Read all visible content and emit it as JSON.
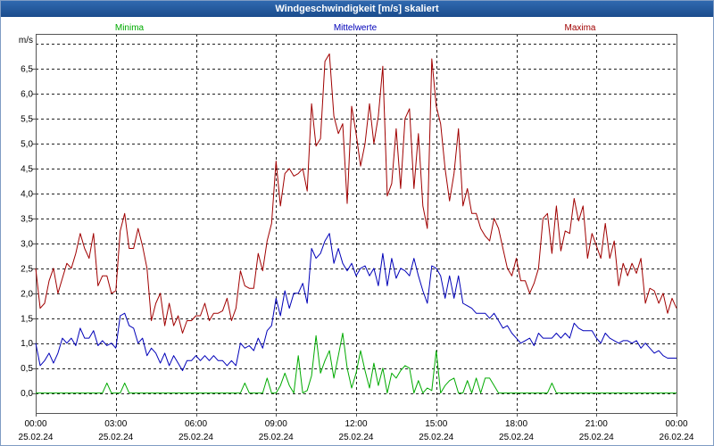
{
  "chart_data": {
    "type": "line",
    "title": "Windgeschwindigkeit [m/s] skaliert",
    "xlabel": "",
    "ylabel": "m/s",
    "ylim": [
      -0.4,
      7.2
    ],
    "xlim": [
      "25.02.24 00:00",
      "26.02.24 00:00"
    ],
    "grid": true,
    "legend_placement": "top",
    "y_ticks": [
      {
        "value": 0.0,
        "label": "0,0"
      },
      {
        "value": 0.5,
        "label": "0,5"
      },
      {
        "value": 1.0,
        "label": "1,0"
      },
      {
        "value": 1.5,
        "label": "1,5"
      },
      {
        "value": 2.0,
        "label": "2,0"
      },
      {
        "value": 2.5,
        "label": "2,5"
      },
      {
        "value": 3.0,
        "label": "3,0"
      },
      {
        "value": 3.5,
        "label": "3,5"
      },
      {
        "value": 4.0,
        "label": "4,0"
      },
      {
        "value": 4.5,
        "label": "4,5"
      },
      {
        "value": 5.0,
        "label": "5,0"
      },
      {
        "value": 5.5,
        "label": "5,5"
      },
      {
        "value": 6.0,
        "label": "6,0"
      },
      {
        "value": 6.5,
        "label": "6,5"
      }
    ],
    "x_ticks": [
      {
        "time": "00:00",
        "date": "25.02.24"
      },
      {
        "time": "03:00",
        "date": "25.02.24"
      },
      {
        "time": "06:00",
        "date": "25.02.24"
      },
      {
        "time": "09:00",
        "date": "25.02.24"
      },
      {
        "time": "12:00",
        "date": "25.02.24"
      },
      {
        "time": "15:00",
        "date": "25.02.24"
      },
      {
        "time": "18:00",
        "date": "25.02.24"
      },
      {
        "time": "21:00",
        "date": "25.02.24"
      },
      {
        "time": "00:00",
        "date": "26.02.24"
      }
    ],
    "x": [
      "25.02.24 00:00",
      "25.02.24 00:10",
      "25.02.24 00:20",
      "25.02.24 00:30",
      "25.02.24 00:40",
      "25.02.24 00:50",
      "25.02.24 01:00",
      "25.02.24 01:10",
      "25.02.24 01:20",
      "25.02.24 01:30",
      "25.02.24 01:40",
      "25.02.24 01:50",
      "25.02.24 02:00",
      "25.02.24 02:10",
      "25.02.24 02:20",
      "25.02.24 02:30",
      "25.02.24 02:40",
      "25.02.24 02:50",
      "25.02.24 03:00",
      "25.02.24 03:10",
      "25.02.24 03:20",
      "25.02.24 03:30",
      "25.02.24 03:40",
      "25.02.24 03:50",
      "25.02.24 04:00",
      "25.02.24 04:10",
      "25.02.24 04:20",
      "25.02.24 04:30",
      "25.02.24 04:40",
      "25.02.24 04:50",
      "25.02.24 05:00",
      "25.02.24 05:10",
      "25.02.24 05:20",
      "25.02.24 05:30",
      "25.02.24 05:40",
      "25.02.24 05:50",
      "25.02.24 06:00",
      "25.02.24 06:10",
      "25.02.24 06:20",
      "25.02.24 06:30",
      "25.02.24 06:40",
      "25.02.24 06:50",
      "25.02.24 07:00",
      "25.02.24 07:10",
      "25.02.24 07:20",
      "25.02.24 07:30",
      "25.02.24 07:40",
      "25.02.24 07:50",
      "25.02.24 08:00",
      "25.02.24 08:10",
      "25.02.24 08:20",
      "25.02.24 08:30",
      "25.02.24 08:40",
      "25.02.24 08:50",
      "25.02.24 09:00",
      "25.02.24 09:10",
      "25.02.24 09:20",
      "25.02.24 09:30",
      "25.02.24 09:40",
      "25.02.24 09:50",
      "25.02.24 10:00",
      "25.02.24 10:10",
      "25.02.24 10:20",
      "25.02.24 10:30",
      "25.02.24 10:40",
      "25.02.24 10:50",
      "25.02.24 11:00",
      "25.02.24 11:10",
      "25.02.24 11:20",
      "25.02.24 11:30",
      "25.02.24 11:40",
      "25.02.24 11:50",
      "25.02.24 12:00",
      "25.02.24 12:10",
      "25.02.24 12:20",
      "25.02.24 12:30",
      "25.02.24 12:40",
      "25.02.24 12:50",
      "25.02.24 13:00",
      "25.02.24 13:10",
      "25.02.24 13:20",
      "25.02.24 13:30",
      "25.02.24 13:40",
      "25.02.24 13:50",
      "25.02.24 14:00",
      "25.02.24 14:10",
      "25.02.24 14:20",
      "25.02.24 14:30",
      "25.02.24 14:40",
      "25.02.24 14:50",
      "25.02.24 15:00",
      "25.02.24 15:10",
      "25.02.24 15:20",
      "25.02.24 15:30",
      "25.02.24 15:40",
      "25.02.24 15:50",
      "25.02.24 16:00",
      "25.02.24 16:10",
      "25.02.24 16:20",
      "25.02.24 16:30",
      "25.02.24 16:40",
      "25.02.24 16:50",
      "25.02.24 17:00",
      "25.02.24 17:10",
      "25.02.24 17:20",
      "25.02.24 17:30",
      "25.02.24 17:40",
      "25.02.24 17:50",
      "25.02.24 18:00",
      "25.02.24 18:10",
      "25.02.24 18:20",
      "25.02.24 18:30",
      "25.02.24 18:40",
      "25.02.24 18:50",
      "25.02.24 19:00",
      "25.02.24 19:10",
      "25.02.24 19:20",
      "25.02.24 19:30",
      "25.02.24 19:40",
      "25.02.24 19:50",
      "25.02.24 20:00",
      "25.02.24 20:10",
      "25.02.24 20:20",
      "25.02.24 20:30",
      "25.02.24 20:40",
      "25.02.24 20:50",
      "25.02.24 21:00",
      "25.02.24 21:10",
      "25.02.24 21:20",
      "25.02.24 21:30",
      "25.02.24 21:40",
      "25.02.24 21:50",
      "25.02.24 22:00",
      "25.02.24 22:10",
      "25.02.24 22:20",
      "25.02.24 22:30",
      "25.02.24 22:40",
      "25.02.24 22:50",
      "25.02.24 23:00",
      "25.02.24 23:10",
      "25.02.24 23:20",
      "25.02.24 23:30",
      "25.02.24 23:40",
      "25.02.24 23:50",
      "26.02.24 00:00"
    ],
    "series": [
      {
        "name": "Minima",
        "color": "#00aa00",
        "values": [
          0,
          0,
          0,
          0,
          0,
          0,
          0,
          0,
          0,
          0,
          0,
          0,
          0,
          0,
          0,
          0,
          0.2,
          0,
          0,
          0,
          0.2,
          0,
          0,
          0,
          0,
          0,
          0,
          0,
          0,
          0,
          0,
          0,
          0,
          0,
          0,
          0,
          0,
          0,
          0,
          0,
          0,
          0,
          0,
          0,
          0,
          0,
          0,
          0.2,
          0,
          0,
          0,
          0,
          0.3,
          0,
          0,
          0.15,
          0.4,
          0.15,
          0,
          0.75,
          0,
          0.05,
          0.35,
          1.15,
          0.4,
          0.65,
          0.85,
          0.3,
          0.75,
          1.2,
          0.5,
          0.1,
          0.4,
          0.85,
          0.45,
          0.1,
          0.6,
          0.15,
          0.5,
          0,
          0.4,
          0.3,
          0.45,
          0.55,
          0.5,
          0,
          0.25,
          0,
          0.1,
          0.05,
          0.85,
          0,
          0.15,
          0.25,
          0.3,
          0,
          0,
          0.25,
          0,
          0.3,
          0,
          0.3,
          0.3,
          0.15,
          0,
          0,
          0,
          0,
          0,
          0,
          0,
          0,
          0,
          0,
          0,
          0,
          0.2,
          0,
          0,
          0,
          0,
          0,
          0,
          0,
          0,
          0,
          0,
          0,
          0,
          0,
          0,
          0,
          0,
          0,
          0,
          0,
          0,
          0,
          0,
          0,
          0,
          0,
          0,
          0,
          0
        ]
      },
      {
        "name": "Mittelwerte",
        "color": "#0000b8",
        "values": [
          1.0,
          0.55,
          0.65,
          0.8,
          0.6,
          0.8,
          1.1,
          1.0,
          1.1,
          0.95,
          1.3,
          1.1,
          1.1,
          1.25,
          0.95,
          1.05,
          0.95,
          1.0,
          0.9,
          1.55,
          1.6,
          1.35,
          1.3,
          1.0,
          1.1,
          0.75,
          0.9,
          0.8,
          0.6,
          0.8,
          0.55,
          0.75,
          0.6,
          0.45,
          0.65,
          0.65,
          0.75,
          0.65,
          0.75,
          0.65,
          0.75,
          0.65,
          0.65,
          0.55,
          0.65,
          0.55,
          1.0,
          0.9,
          0.95,
          0.85,
          1.1,
          0.9,
          1.25,
          1.35,
          1.9,
          1.55,
          2.05,
          1.7,
          2.0,
          2.0,
          2.2,
          1.8,
          2.9,
          2.7,
          2.8,
          3.05,
          3.2,
          2.6,
          2.9,
          2.6,
          2.45,
          2.6,
          2.35,
          2.5,
          2.55,
          2.35,
          2.5,
          2.15,
          2.8,
          2.15,
          2.7,
          2.3,
          2.5,
          2.45,
          2.35,
          2.7,
          2.35,
          2.05,
          1.8,
          2.55,
          2.5,
          2.35,
          1.9,
          2.35,
          1.9,
          2.35,
          1.8,
          1.75,
          1.7,
          1.6,
          1.6,
          1.6,
          1.5,
          1.6,
          1.45,
          1.3,
          1.35,
          1.2,
          1.1,
          1.0,
          1.05,
          1.1,
          0.95,
          1.2,
          1.1,
          1.1,
          1.1,
          1.2,
          1.1,
          1.2,
          1.1,
          1.4,
          1.3,
          1.25,
          1.25,
          1.25,
          1.1,
          1.0,
          1.2,
          1.1,
          1.05,
          1.0,
          1.05,
          1.05,
          1.0,
          1.05,
          0.9,
          1.0,
          0.9,
          0.8,
          0.85,
          0.75,
          0.7,
          0.7,
          0.7
        ]
      },
      {
        "name": "Maxima",
        "color": "#a00000",
        "values": [
          2.5,
          1.7,
          1.8,
          2.25,
          2.5,
          2.0,
          2.3,
          2.6,
          2.5,
          2.8,
          3.2,
          2.9,
          2.7,
          3.2,
          2.15,
          2.35,
          2.35,
          2.0,
          2.05,
          3.25,
          3.6,
          2.9,
          2.9,
          3.3,
          2.95,
          2.5,
          1.45,
          1.8,
          2.0,
          1.35,
          1.8,
          1.35,
          1.55,
          1.2,
          1.45,
          1.45,
          1.55,
          1.55,
          1.8,
          1.45,
          1.6,
          1.6,
          1.65,
          1.9,
          1.45,
          1.7,
          2.45,
          2.15,
          2.1,
          2.1,
          2.8,
          2.45,
          3.05,
          3.4,
          4.65,
          3.75,
          4.4,
          4.5,
          4.35,
          4.4,
          4.5,
          4.05,
          5.8,
          4.95,
          5.1,
          6.65,
          6.8,
          5.55,
          5.2,
          5.4,
          3.8,
          5.75,
          5.2,
          4.55,
          5.0,
          5.8,
          5.0,
          5.55,
          6.55,
          3.95,
          4.2,
          5.3,
          4.1,
          5.5,
          5.7,
          4.1,
          5.2,
          3.75,
          3.3,
          6.7,
          5.75,
          5.4,
          4.5,
          3.85,
          4.4,
          5.3,
          3.75,
          4.1,
          3.6,
          3.6,
          3.3,
          3.15,
          3.05,
          3.5,
          3.3,
          2.9,
          2.5,
          2.35,
          2.7,
          2.25,
          2.25,
          2.0,
          2.2,
          2.5,
          3.5,
          3.6,
          2.8,
          3.75,
          2.85,
          3.25,
          3.2,
          3.9,
          3.45,
          3.75,
          2.7,
          3.2,
          2.95,
          2.7,
          3.4,
          2.7,
          3.05,
          2.15,
          2.6,
          2.35,
          2.6,
          2.4,
          2.7,
          1.8,
          2.1,
          2.05,
          1.8,
          2.0,
          1.6,
          1.9,
          1.7
        ]
      }
    ]
  }
}
